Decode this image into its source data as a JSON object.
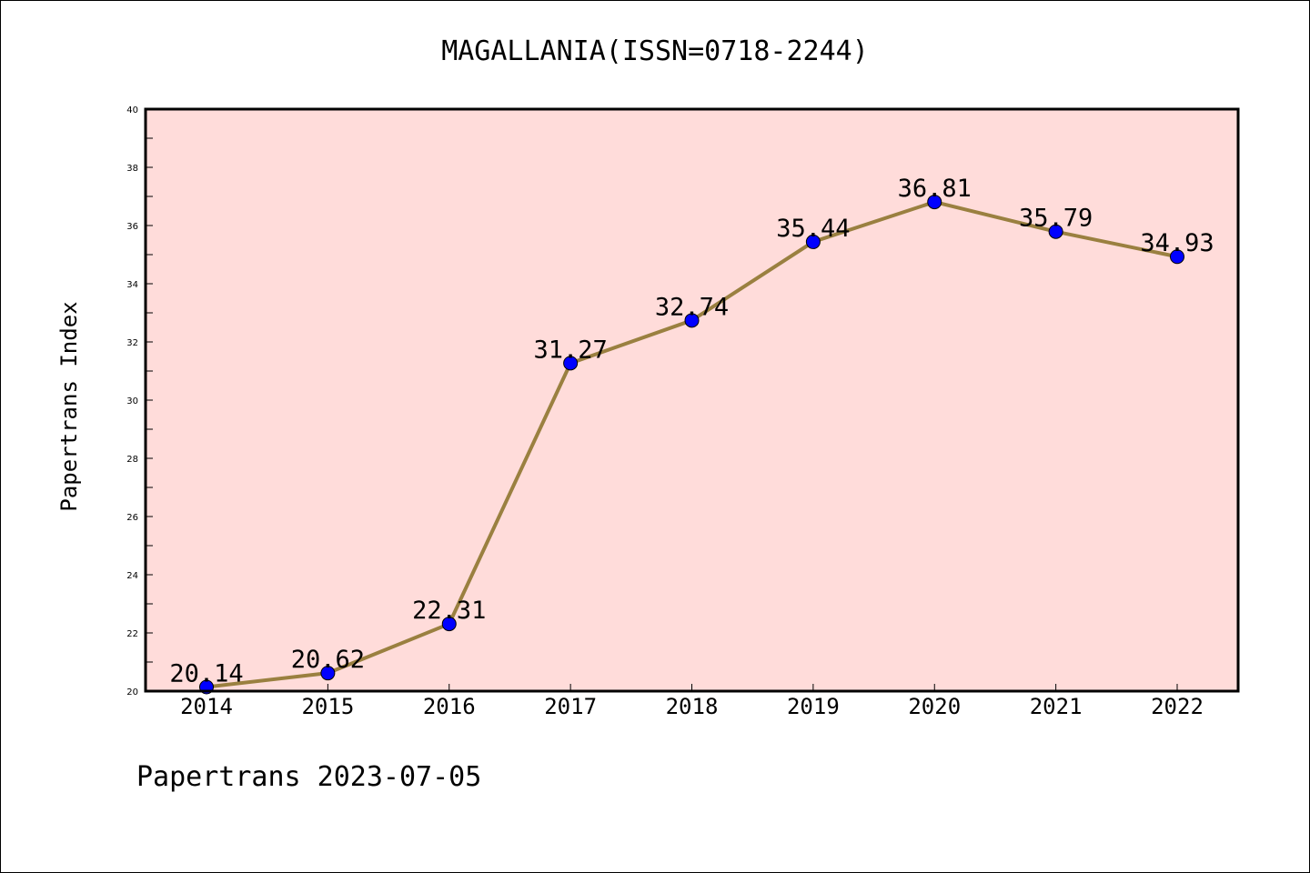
{
  "footer": "Papertrans 2023-07-05",
  "colors": {
    "plot_background": "#ffdcda",
    "line": "#9a8040",
    "marker": "#0000ff",
    "axis": "#000000"
  },
  "chart_data": {
    "type": "line",
    "title": "MAGALLANIA(ISSN=0718-2244)",
    "xlabel": "",
    "ylabel": "Papertrans Index",
    "categories": [
      "2014",
      "2015",
      "2016",
      "2017",
      "2018",
      "2019",
      "2020",
      "2021",
      "2022"
    ],
    "series": [
      {
        "values": [
          20.14,
          20.62,
          22.31,
          31.27,
          32.74,
          35.44,
          36.81,
          35.79,
          34.93
        ],
        "labels": [
          "20.14",
          "20.62",
          "22.31",
          "31.27",
          "32.74",
          "35.44",
          "36.81",
          "35.79",
          "34.93"
        ]
      }
    ],
    "ylim": [
      20,
      40
    ],
    "yticks": [
      "20",
      "22",
      "24",
      "26",
      "28",
      "30",
      "32",
      "34",
      "36",
      "38",
      "40"
    ],
    "grid": false,
    "legend": "none"
  }
}
